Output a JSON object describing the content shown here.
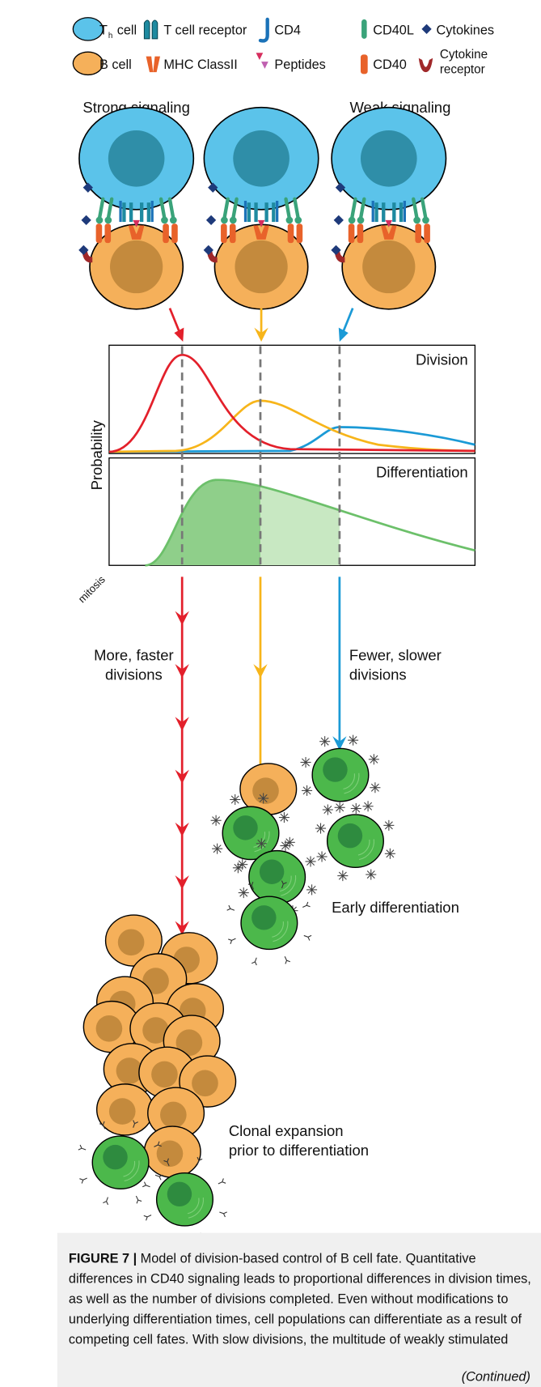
{
  "legend": {
    "items": [
      {
        "label": "T",
        "subscript": "h",
        "suffix": "cell"
      },
      {
        "label": "T cell receptor"
      },
      {
        "label": "CD4"
      },
      {
        "label": "CD40L"
      },
      {
        "label": "Cytokines"
      },
      {
        "label": "B cell"
      },
      {
        "label": "MHC ClassII"
      },
      {
        "label": "Peptides"
      },
      {
        "label": "CD40"
      },
      {
        "label_lines": [
          "Cytokine",
          "receptor"
        ]
      }
    ]
  },
  "headers": {
    "strong": "Strong signaling",
    "weak": "Weak signaling"
  },
  "plot": {
    "top_label": "Division",
    "bottom_label": "Differentiation",
    "y_label": "Probability",
    "x_label": "mitosis"
  },
  "annotations": {
    "fast": [
      "More, faster",
      "divisions"
    ],
    "slow": [
      "Fewer, slower",
      "divisions"
    ],
    "early": "Early differentiation",
    "clonal": [
      "Clonal expansion",
      "prior to differentiation"
    ]
  },
  "caption": {
    "label": "FIGURE 7 |",
    "lines": [
      " Model of division-based control of B cell fate. Quantitative",
      "differences in CD40 signaling leads to proportional differences in division times,",
      "as well as the number of divisions completed. Even without modifications to",
      "underlying differentiation times, cell populations can differentiate as a result of",
      "competing cell fates. With slow divisions, the multitude of weakly stimulated"
    ],
    "continued": "(Continued)"
  }
}
